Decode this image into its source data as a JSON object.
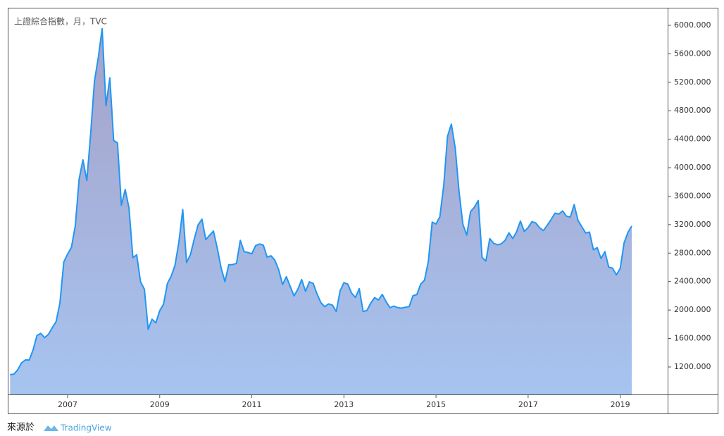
{
  "chart_data": {
    "type": "area",
    "title": "上證綜合指數，月，TVC",
    "source_label": "來源於",
    "source_brand": "TradingView",
    "color": "#2196f3",
    "x": [
      2005.75,
      2005.833,
      2005.917,
      2006,
      2006.083,
      2006.167,
      2006.25,
      2006.333,
      2006.417,
      2006.5,
      2006.583,
      2006.667,
      2006.75,
      2006.833,
      2006.917,
      2007,
      2007.083,
      2007.167,
      2007.25,
      2007.333,
      2007.417,
      2007.5,
      2007.583,
      2007.667,
      2007.75,
      2007.833,
      2007.917,
      2008,
      2008.083,
      2008.167,
      2008.25,
      2008.333,
      2008.417,
      2008.5,
      2008.583,
      2008.667,
      2008.75,
      2008.833,
      2008.917,
      2009,
      2009.083,
      2009.167,
      2009.25,
      2009.333,
      2009.417,
      2009.5,
      2009.583,
      2009.667,
      2009.75,
      2009.833,
      2009.917,
      2010,
      2010.083,
      2010.167,
      2010.25,
      2010.333,
      2010.417,
      2010.5,
      2010.583,
      2010.667,
      2010.75,
      2010.833,
      2010.917,
      2011,
      2011.083,
      2011.167,
      2011.25,
      2011.333,
      2011.417,
      2011.5,
      2011.583,
      2011.667,
      2011.75,
      2011.833,
      2011.917,
      2012,
      2012.083,
      2012.167,
      2012.25,
      2012.333,
      2012.417,
      2012.5,
      2012.583,
      2012.667,
      2012.75,
      2012.833,
      2012.917,
      2013,
      2013.083,
      2013.167,
      2013.25,
      2013.333,
      2013.417,
      2013.5,
      2013.583,
      2013.667,
      2013.75,
      2013.833,
      2013.917,
      2014,
      2014.083,
      2014.167,
      2014.25,
      2014.333,
      2014.417,
      2014.5,
      2014.583,
      2014.667,
      2014.75,
      2014.833,
      2014.917,
      2015,
      2015.083,
      2015.167,
      2015.25,
      2015.333,
      2015.417,
      2015.5,
      2015.583,
      2015.667,
      2015.75,
      2015.833,
      2015.917,
      2016,
      2016.083,
      2016.167,
      2016.25,
      2016.333,
      2016.417,
      2016.5,
      2016.583,
      2016.667,
      2016.75,
      2016.833,
      2016.917,
      2017,
      2017.083,
      2017.167,
      2017.25,
      2017.333,
      2017.417,
      2017.5,
      2017.583,
      2017.667,
      2017.75,
      2017.833,
      2017.917,
      2018,
      2018.083,
      2018.167,
      2018.25,
      2018.333,
      2018.417,
      2018.5,
      2018.583,
      2018.667,
      2018.75,
      2018.833,
      2018.917,
      2019,
      2019.083,
      2019.167,
      2019.25
    ],
    "values": [
      1092,
      1099,
      1161,
      1258,
      1299,
      1298,
      1440,
      1641,
      1672,
      1612,
      1658,
      1752,
      1837,
      2099,
      2675,
      2786,
      2881,
      3183,
      3841,
      4109,
      3820,
      4471,
      5218,
      5552,
      5954,
      4871,
      5262,
      4383,
      4348,
      3473,
      3693,
      3433,
      2736,
      2775,
      2397,
      2293,
      1729,
      1871,
      1821,
      1991,
      2082,
      2373,
      2477,
      2632,
      2959,
      3412,
      2667,
      2779,
      2996,
      3195,
      3277,
      2989,
      3051,
      3109,
      2870,
      2592,
      2398,
      2638,
      2638,
      2655,
      2979,
      2820,
      2808,
      2790,
      2905,
      2928,
      2911,
      2743,
      2762,
      2701,
      2567,
      2359,
      2468,
      2333,
      2199,
      2292,
      2428,
      2262,
      2396,
      2373,
      2225,
      2103,
      2047,
      2086,
      2069,
      1980,
      2269,
      2385,
      2365,
      2237,
      2178,
      2300,
      1979,
      1994,
      2098,
      2175,
      2141,
      2220,
      2116,
      2033,
      2056,
      2033,
      2026,
      2039,
      2048,
      2202,
      2217,
      2364,
      2420,
      2683,
      3235,
      3210,
      3310,
      3748,
      4442,
      4612,
      4277,
      3664,
      3206,
      3053,
      3383,
      3445,
      3539,
      2738,
      2688,
      3004,
      2938,
      2917,
      2930,
      2979,
      3085,
      3005,
      3100,
      3250,
      3104,
      3159,
      3242,
      3223,
      3155,
      3117,
      3192,
      3273,
      3361,
      3349,
      3393,
      3317,
      3307,
      3481,
      3259,
      3169,
      3082,
      3095,
      2847,
      2876,
      2725,
      2821,
      2603,
      2588,
      2494,
      2585,
      2941,
      3091,
      3180
    ],
    "xlim": [
      2005.7,
      2020.03
    ],
    "xticks": [
      2007,
      2009,
      2011,
      2013,
      2015,
      2017,
      2019
    ],
    "ylim": [
      814,
      6247
    ],
    "yticks": [
      {
        "value": 1200,
        "label": "1200.000"
      },
      {
        "value": 1600,
        "label": "1600.000"
      },
      {
        "value": 2000,
        "label": "2000.000"
      },
      {
        "value": 2400,
        "label": "2400.000"
      },
      {
        "value": 2800,
        "label": "2800.000"
      },
      {
        "value": 3200,
        "label": "3200.000"
      },
      {
        "value": 3600,
        "label": "3600.000"
      },
      {
        "value": 4000,
        "label": "4000.000"
      },
      {
        "value": 4400,
        "label": "4400.000"
      },
      {
        "value": 4800,
        "label": "4800.000"
      },
      {
        "value": 5200,
        "label": "5200.000"
      },
      {
        "value": 5600,
        "label": "5600.000"
      },
      {
        "value": 6000,
        "label": "6000.000"
      }
    ],
    "grid": false
  }
}
